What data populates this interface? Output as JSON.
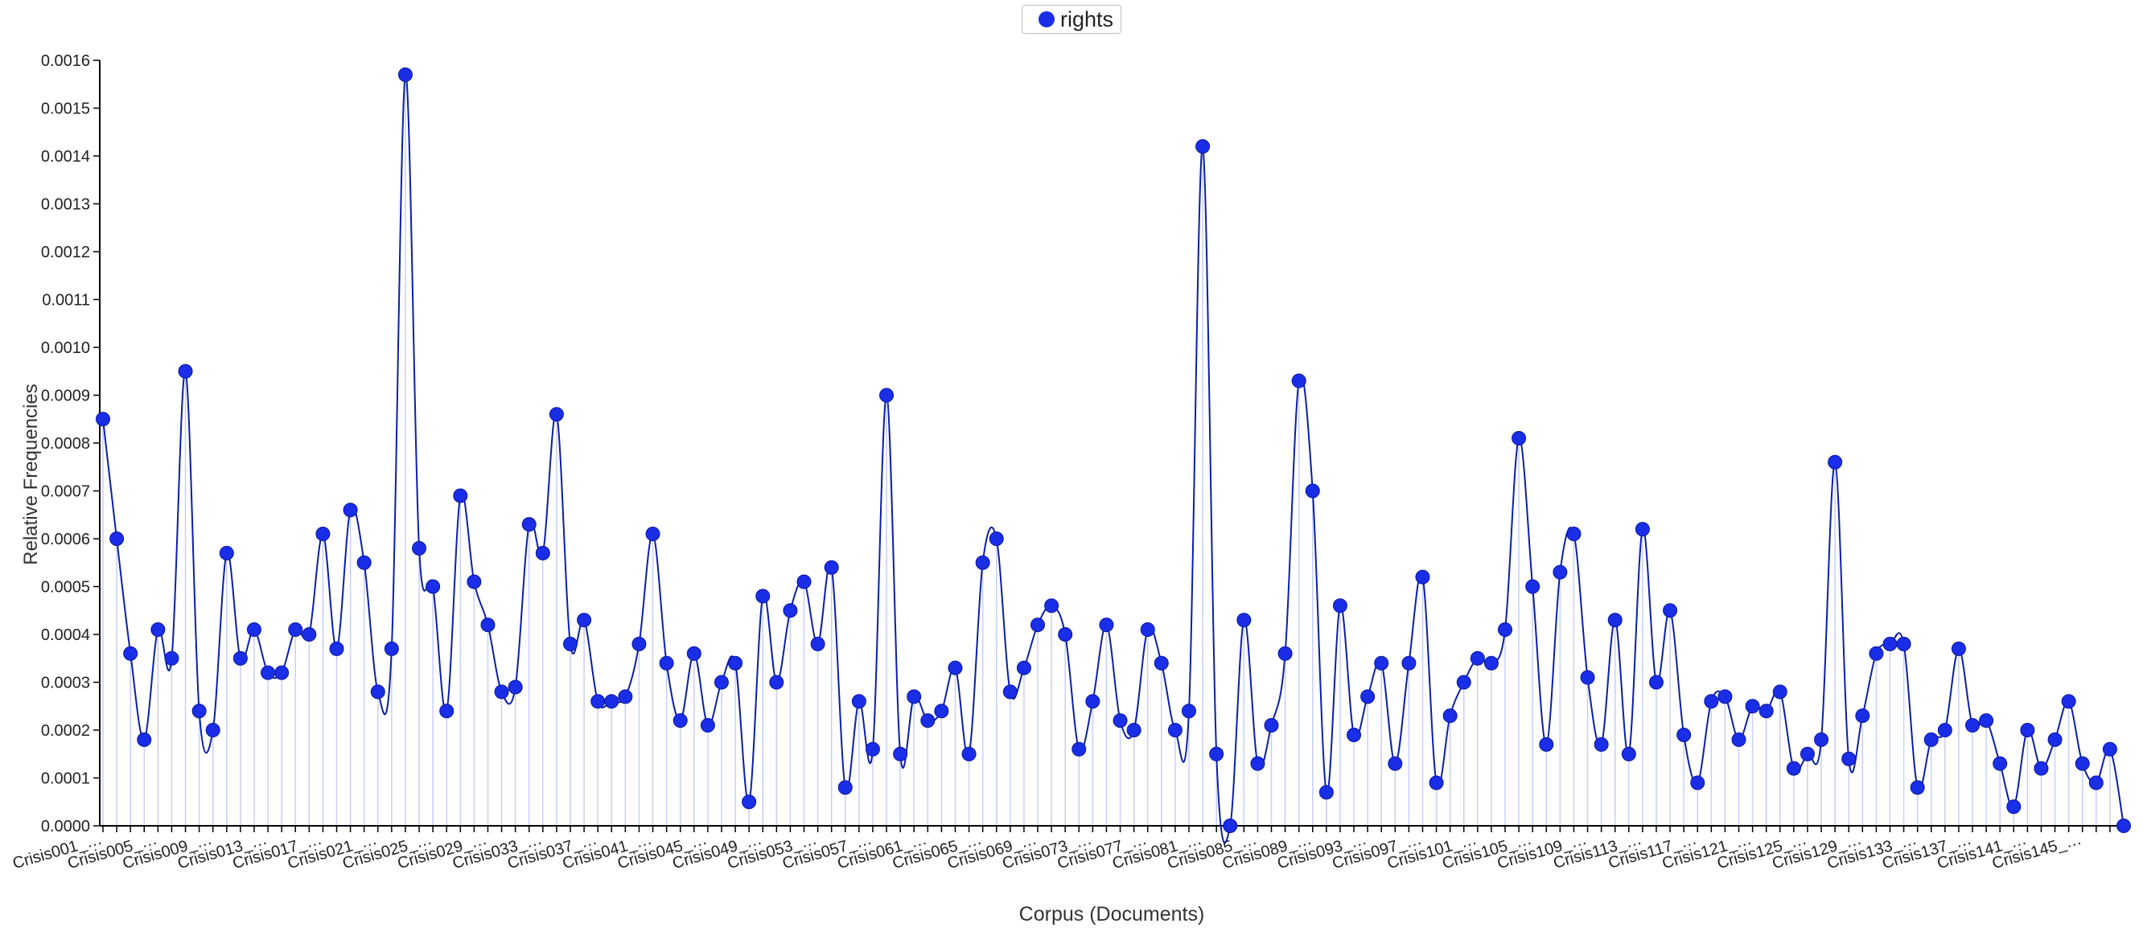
{
  "chart_data": {
    "type": "line",
    "title": "",
    "xlabel": "Corpus (Documents)",
    "ylabel": "Relative Frequencies",
    "ylim": [
      0,
      0.0016
    ],
    "yticks": [
      "0.0000",
      "0.0001",
      "0.0002",
      "0.0003",
      "0.0004",
      "0.0005",
      "0.0006",
      "0.0007",
      "0.0008",
      "0.0009",
      "0.0010",
      "0.0011",
      "0.0012",
      "0.0013",
      "0.0014",
      "0.0015",
      "0.0016"
    ],
    "grid": false,
    "legend_position": "top-center",
    "legend": [
      {
        "label": "rights",
        "color": "#1a2ee8"
      }
    ],
    "colors": {
      "line": "#0a1fa8",
      "point": "#1a2ee8",
      "stem": "#c9cff5"
    },
    "tick_labels": [
      "Crisis001_…",
      "Crisis005_…",
      "Crisis009_…",
      "Crisis013_…",
      "Crisis017_…",
      "Crisis021_…",
      "Crisis025_…",
      "Crisis029_…",
      "Crisis033_…",
      "Crisis037_…",
      "Crisis041_…",
      "Crisis045_…",
      "Crisis049_…",
      "Crisis053_…",
      "Crisis057_…",
      "Crisis061_…",
      "Crisis065_…",
      "Crisis069_…",
      "Crisis073_…",
      "Crisis077_…",
      "Crisis081_…",
      "Crisis085_…",
      "Crisis089_…",
      "Crisis093_…",
      "Crisis097_…",
      "Crisis101_…",
      "Crisis105_…",
      "Crisis109_…",
      "Crisis113_…",
      "Crisis117_…",
      "Crisis121_…",
      "Crisis125_…",
      "Crisis129_…",
      "Crisis133_…",
      "Crisis137_…",
      "Crisis141_…",
      "Crisis145_…"
    ],
    "series": [
      {
        "name": "rights",
        "values": [
          0.00085,
          0.0006,
          0.00036,
          0.00018,
          0.00041,
          0.00035,
          0.00095,
          0.00024,
          0.0002,
          0.00057,
          0.00035,
          0.00041,
          0.00032,
          0.00032,
          0.00041,
          0.0004,
          0.00061,
          0.00037,
          0.00066,
          0.00055,
          0.00028,
          0.00037,
          0.00157,
          0.00058,
          0.0005,
          0.00024,
          0.00069,
          0.00051,
          0.00042,
          0.00028,
          0.00029,
          0.00063,
          0.00057,
          0.00086,
          0.00038,
          0.00043,
          0.00026,
          0.00026,
          0.00027,
          0.00038,
          0.00061,
          0.00034,
          0.00022,
          0.00036,
          0.00021,
          0.0003,
          0.00034,
          5e-05,
          0.00048,
          0.0003,
          0.00045,
          0.00051,
          0.00038,
          0.00054,
          8e-05,
          0.00026,
          0.00016,
          0.0009,
          0.00015,
          0.00027,
          0.00022,
          0.00024,
          0.00033,
          0.00015,
          0.00055,
          0.0006,
          0.00028,
          0.00033,
          0.00042,
          0.00046,
          0.0004,
          0.00016,
          0.00026,
          0.00042,
          0.00022,
          0.0002,
          0.00041,
          0.00034,
          0.0002,
          0.00024,
          0.00142,
          0.00015,
          0.0,
          0.00043,
          0.00013,
          0.00021,
          0.00036,
          0.00093,
          0.0007,
          7e-05,
          0.00046,
          0.00019,
          0.00027,
          0.00034,
          0.00013,
          0.00034,
          0.00052,
          9e-05,
          0.00023,
          0.0003,
          0.00035,
          0.00034,
          0.00041,
          0.00081,
          0.0005,
          0.00017,
          0.00053,
          0.00061,
          0.00031,
          0.00017,
          0.00043,
          0.00015,
          0.00062,
          0.0003,
          0.00045,
          0.00019,
          9e-05,
          0.00026,
          0.00027,
          0.00018,
          0.00025,
          0.00024,
          0.00028,
          0.00012,
          0.00015,
          0.00018,
          0.00076,
          0.00014,
          0.00023,
          0.00036,
          0.00038,
          0.00038,
          8e-05,
          0.00018,
          0.0002,
          0.00037,
          0.00021,
          0.00022,
          0.00013,
          4e-05,
          0.0002,
          0.00012,
          0.00018,
          0.00026,
          0.00013,
          9e-05,
          0.00016,
          0.0
        ]
      }
    ]
  }
}
